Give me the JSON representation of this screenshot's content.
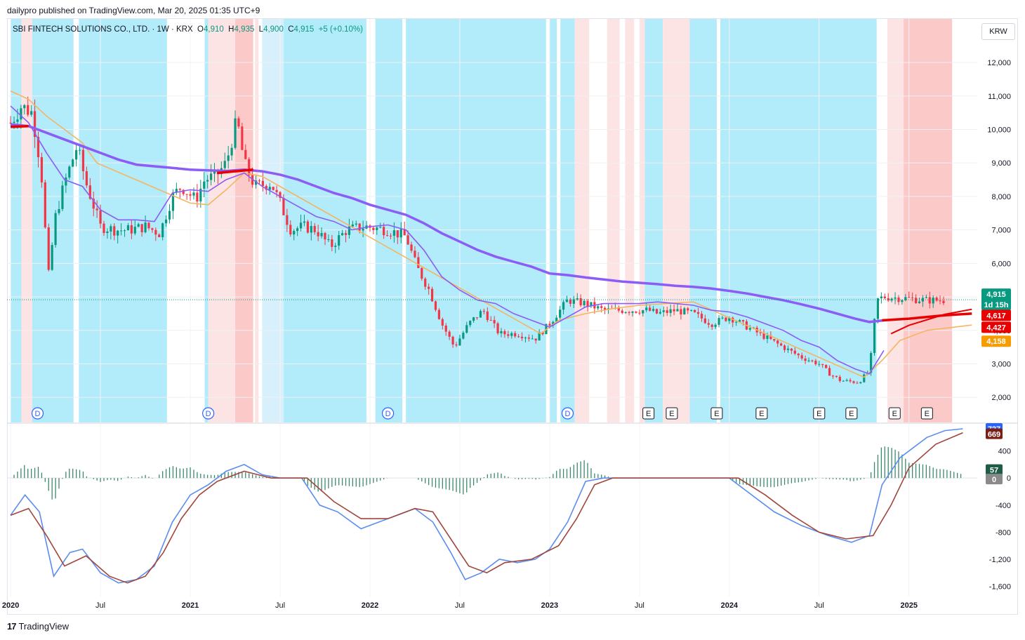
{
  "header": {
    "published": "dailypro published on TradingView.com, Mar 20, 2025 01:35 UTC+9"
  },
  "legend": {
    "symbol": "SBI FINTECH SOLUTIONS CO., LTD. · 1W · KRX",
    "o_label": "O",
    "o_value": "4,910",
    "h_label": "H",
    "h_value": "4,935",
    "l_label": "L",
    "l_value": "4,900",
    "c_label": "C",
    "c_value": "4,915",
    "change": "+5 (+0.10%)"
  },
  "currency": "KRW",
  "footer": {
    "brand": "TradingView"
  },
  "colors": {
    "up": "#089981",
    "down": "#f23645",
    "cyan_band": "#b2ebfa",
    "pale_cyan_band": "#d8f0fb",
    "pink_band": "#fde4e4",
    "red_band": "#fcc9c9",
    "ma_purple": "#8b5cf6",
    "ma_red": "#e80000",
    "ma_orange": "#f5b560",
    "macd_blue": "#5b8def",
    "signal_brown": "#a0463c",
    "hist": "#3a8a6a"
  },
  "chart_data": [
    {
      "type": "candlestick",
      "title": "SBI FINTECH SOLUTIONS CO., LTD. · 1W · KRX",
      "x_ticks": [
        "2020",
        "Jul",
        "2021",
        "Jul",
        "2022",
        "Jul",
        "2023",
        "Jul",
        "2024",
        "Jul",
        "2025"
      ],
      "y_ticks": [
        "2,000",
        "3,000",
        "4,000",
        "5,000",
        "6,000",
        "7,000",
        "8,000",
        "9,000",
        "10,000",
        "11,000",
        "12,000"
      ],
      "ylim": [
        1250,
        13300
      ],
      "xlim": [
        2020.0,
        2025.35
      ],
      "close_path": [
        [
          2020.0,
          10200
        ],
        [
          2020.06,
          10700
        ],
        [
          2020.12,
          10500
        ],
        [
          2020.17,
          8800
        ],
        [
          2020.21,
          5600
        ],
        [
          2020.25,
          7400
        ],
        [
          2020.3,
          8400
        ],
        [
          2020.37,
          9500
        ],
        [
          2020.42,
          8400
        ],
        [
          2020.5,
          7100
        ],
        [
          2020.58,
          7000
        ],
        [
          2020.66,
          7000
        ],
        [
          2020.75,
          7100
        ],
        [
          2020.83,
          6900
        ],
        [
          2020.9,
          8000
        ],
        [
          2020.95,
          8300
        ],
        [
          2021.03,
          7900
        ],
        [
          2021.08,
          8500
        ],
        [
          2021.14,
          8600
        ],
        [
          2021.2,
          9000
        ],
        [
          2021.26,
          10300
        ],
        [
          2021.3,
          9000
        ],
        [
          2021.36,
          8300
        ],
        [
          2021.45,
          8400
        ],
        [
          2021.5,
          7800
        ],
        [
          2021.56,
          7000
        ],
        [
          2021.63,
          7100
        ],
        [
          2021.7,
          7000
        ],
        [
          2021.78,
          6500
        ],
        [
          2021.87,
          7000
        ],
        [
          2021.97,
          7100
        ],
        [
          2022.1,
          7000
        ],
        [
          2022.2,
          6800
        ],
        [
          2022.26,
          5900
        ],
        [
          2022.33,
          5200
        ],
        [
          2022.4,
          4200
        ],
        [
          2022.47,
          3500
        ],
        [
          2022.55,
          4200
        ],
        [
          2022.63,
          4600
        ],
        [
          2022.72,
          3900
        ],
        [
          2022.82,
          3900
        ],
        [
          2022.92,
          3750
        ],
        [
          2023.0,
          4200
        ],
        [
          2023.1,
          4900
        ],
        [
          2023.2,
          4800
        ],
        [
          2023.3,
          4600
        ],
        [
          2023.45,
          4600
        ],
        [
          2023.55,
          4600
        ],
        [
          2023.6,
          4500
        ],
        [
          2023.7,
          4600
        ],
        [
          2023.8,
          4500
        ],
        [
          2023.9,
          4200
        ],
        [
          2024.0,
          4400
        ],
        [
          2024.1,
          4100
        ],
        [
          2024.2,
          3800
        ],
        [
          2024.3,
          3500
        ],
        [
          2024.4,
          3200
        ],
        [
          2024.5,
          3000
        ],
        [
          2024.56,
          2700
        ],
        [
          2024.62,
          2500
        ],
        [
          2024.72,
          2450
        ],
        [
          2024.78,
          2800
        ],
        [
          2024.82,
          4900
        ],
        [
          2024.86,
          5000
        ],
        [
          2025.0,
          4950
        ],
        [
          2025.1,
          4900
        ],
        [
          2025.2,
          4900
        ]
      ],
      "ma_fast_purple": [
        [
          2020.0,
          10700
        ],
        [
          2020.1,
          10200
        ],
        [
          2020.2,
          9300
        ],
        [
          2020.3,
          8500
        ],
        [
          2020.4,
          8300
        ],
        [
          2020.5,
          7600
        ],
        [
          2020.6,
          7300
        ],
        [
          2020.7,
          7300
        ],
        [
          2020.8,
          7250
        ],
        [
          2020.9,
          8100
        ],
        [
          2021.0,
          8200
        ],
        [
          2021.1,
          8150
        ],
        [
          2021.2,
          8500
        ],
        [
          2021.3,
          8700
        ],
        [
          2021.4,
          8300
        ],
        [
          2021.5,
          8000
        ],
        [
          2021.6,
          7700
        ],
        [
          2021.7,
          7400
        ],
        [
          2021.8,
          7250
        ],
        [
          2021.9,
          7000
        ],
        [
          2022.0,
          7100
        ],
        [
          2022.1,
          7150
        ],
        [
          2022.2,
          7000
        ],
        [
          2022.3,
          6400
        ],
        [
          2022.4,
          5600
        ],
        [
          2022.5,
          5200
        ],
        [
          2022.6,
          4900
        ],
        [
          2022.7,
          4800
        ],
        [
          2022.8,
          4500
        ],
        [
          2022.9,
          4300
        ],
        [
          2023.0,
          4100
        ],
        [
          2023.1,
          4400
        ],
        [
          2023.2,
          4700
        ],
        [
          2023.3,
          4800
        ],
        [
          2023.4,
          4800
        ],
        [
          2023.5,
          4800
        ],
        [
          2023.6,
          4850
        ],
        [
          2023.7,
          4800
        ],
        [
          2023.8,
          4750
        ],
        [
          2023.9,
          4600
        ],
        [
          2024.0,
          4550
        ],
        [
          2024.1,
          4400
        ],
        [
          2024.2,
          4200
        ],
        [
          2024.3,
          4000
        ],
        [
          2024.4,
          3700
        ],
        [
          2024.5,
          3500
        ],
        [
          2024.6,
          3100
        ],
        [
          2024.7,
          2850
        ],
        [
          2024.78,
          2700
        ],
        [
          2024.86,
          3400
        ]
      ],
      "ma_slow_purple": [
        [
          2020.0,
          10150
        ],
        [
          2020.1,
          10100
        ],
        [
          2020.2,
          9900
        ],
        [
          2020.3,
          9700
        ],
        [
          2020.4,
          9500
        ],
        [
          2020.5,
          9300
        ],
        [
          2020.6,
          9100
        ],
        [
          2020.7,
          8950
        ],
        [
          2020.8,
          8900
        ],
        [
          2020.9,
          8850
        ],
        [
          2021.0,
          8800
        ],
        [
          2021.1,
          8780
        ],
        [
          2021.2,
          8760
        ],
        [
          2021.3,
          8800
        ],
        [
          2021.4,
          8750
        ],
        [
          2021.5,
          8650
        ],
        [
          2021.6,
          8500
        ],
        [
          2021.7,
          8300
        ],
        [
          2021.8,
          8100
        ],
        [
          2021.9,
          7950
        ],
        [
          2022.0,
          7750
        ],
        [
          2022.1,
          7600
        ],
        [
          2022.2,
          7450
        ],
        [
          2022.3,
          7200
        ],
        [
          2022.4,
          6900
        ],
        [
          2022.5,
          6650
        ],
        [
          2022.6,
          6400
        ],
        [
          2022.7,
          6200
        ],
        [
          2022.8,
          6050
        ],
        [
          2022.9,
          5900
        ],
        [
          2023.0,
          5700
        ],
        [
          2023.1,
          5650
        ],
        [
          2023.2,
          5580
        ],
        [
          2023.3,
          5520
        ],
        [
          2023.4,
          5460
        ],
        [
          2023.5,
          5420
        ],
        [
          2023.6,
          5380
        ],
        [
          2023.7,
          5330
        ],
        [
          2023.8,
          5300
        ],
        [
          2023.9,
          5250
        ],
        [
          2024.0,
          5180
        ],
        [
          2024.1,
          5100
        ],
        [
          2024.2,
          5000
        ],
        [
          2024.3,
          4900
        ],
        [
          2024.4,
          4780
        ],
        [
          2024.5,
          4650
        ],
        [
          2024.6,
          4500
        ],
        [
          2024.7,
          4350
        ],
        [
          2024.78,
          4250
        ],
        [
          2024.86,
          4300
        ]
      ],
      "ma_red": [
        [
          2020.0,
          10080
        ],
        [
          2020.1,
          10100
        ],
        [
          2021.15,
          8700
        ],
        [
          2021.35,
          8800
        ],
        [
          2024.85,
          4300
        ],
        [
          2025.0,
          4350
        ],
        [
          2025.2,
          4450
        ],
        [
          2025.35,
          4500
        ]
      ],
      "ma_red_rising": [
        [
          2024.9,
          3900
        ],
        [
          2025.0,
          4150
        ],
        [
          2025.2,
          4480
        ],
        [
          2025.35,
          4630
        ]
      ],
      "ma_orange": [
        [
          2020.0,
          11150
        ],
        [
          2020.1,
          10900
        ],
        [
          2020.2,
          10400
        ],
        [
          2020.3,
          10000
        ],
        [
          2020.4,
          9600
        ],
        [
          2020.48,
          9000
        ],
        [
          2021.0,
          7800
        ],
        [
          2021.1,
          7750
        ],
        [
          2021.2,
          8200
        ],
        [
          2021.3,
          8700
        ],
        [
          2021.4,
          8600
        ],
        [
          2022.95,
          3900
        ],
        [
          2023.05,
          4300
        ],
        [
          2023.2,
          4500
        ],
        [
          2023.35,
          4650
        ],
        [
          2023.5,
          4750
        ],
        [
          2023.65,
          4800
        ],
        [
          2023.8,
          4850
        ],
        [
          2024.75,
          2600
        ],
        [
          2024.85,
          3100
        ],
        [
          2024.95,
          3700
        ],
        [
          2025.1,
          4000
        ],
        [
          2025.35,
          4158
        ]
      ],
      "last_price": 4915,
      "price_tags": [
        "4,915",
        "1d 15h",
        "4,617",
        "4,427",
        "4,158"
      ],
      "band_markers": [
        "D",
        "D",
        "D",
        "D",
        "E",
        "E",
        "E",
        "E",
        "E",
        "E",
        "E",
        "E"
      ]
    },
    {
      "type": "macd",
      "y_ticks": [
        "-1,600",
        "-1,200",
        "-800",
        "-400",
        "0",
        "400"
      ],
      "ylim": [
        -1750,
        800
      ],
      "macd_line": [
        [
          2020.0,
          -550
        ],
        [
          2020.08,
          -250
        ],
        [
          2020.16,
          -500
        ],
        [
          2020.24,
          -1450
        ],
        [
          2020.33,
          -1100
        ],
        [
          2020.4,
          -1050
        ],
        [
          2020.5,
          -1400
        ],
        [
          2020.6,
          -1550
        ],
        [
          2020.7,
          -1500
        ],
        [
          2020.8,
          -1300
        ],
        [
          2020.9,
          -650
        ],
        [
          2021.0,
          -250
        ],
        [
          2021.1,
          -100
        ],
        [
          2021.2,
          100
        ],
        [
          2021.3,
          200
        ],
        [
          2021.4,
          50
        ],
        [
          2021.5,
          0
        ],
        [
          2021.62,
          0
        ],
        [
          2021.72,
          -400
        ],
        [
          2021.82,
          -500
        ],
        [
          2021.95,
          -750
        ],
        [
          2022.05,
          -650
        ],
        [
          2022.15,
          -550
        ],
        [
          2022.25,
          -450
        ],
        [
          2022.35,
          -650
        ],
        [
          2022.45,
          -1100
        ],
        [
          2022.53,
          -1500
        ],
        [
          2022.62,
          -1400
        ],
        [
          2022.72,
          -1200
        ],
        [
          2022.82,
          -1250
        ],
        [
          2022.92,
          -1200
        ],
        [
          2023.0,
          -1050
        ],
        [
          2023.1,
          -650
        ],
        [
          2023.2,
          -50
        ],
        [
          2023.3,
          0
        ],
        [
          2023.5,
          0
        ],
        [
          2023.75,
          0
        ],
        [
          2024.0,
          0
        ],
        [
          2024.1,
          -200
        ],
        [
          2024.25,
          -500
        ],
        [
          2024.4,
          -700
        ],
        [
          2024.55,
          -850
        ],
        [
          2024.68,
          -950
        ],
        [
          2024.78,
          -850
        ],
        [
          2024.85,
          -100
        ],
        [
          2024.95,
          300
        ],
        [
          2025.1,
          600
        ],
        [
          2025.2,
          700
        ],
        [
          2025.3,
          727
        ]
      ],
      "signal_line": [
        [
          2020.0,
          -550
        ],
        [
          2020.1,
          -450
        ],
        [
          2020.2,
          -850
        ],
        [
          2020.3,
          -1300
        ],
        [
          2020.42,
          -1150
        ],
        [
          2020.55,
          -1450
        ],
        [
          2020.65,
          -1550
        ],
        [
          2020.75,
          -1450
        ],
        [
          2020.85,
          -1100
        ],
        [
          2020.95,
          -600
        ],
        [
          2021.05,
          -250
        ],
        [
          2021.15,
          -50
        ],
        [
          2021.3,
          100
        ],
        [
          2021.45,
          0
        ],
        [
          2021.65,
          0
        ],
        [
          2021.8,
          -350
        ],
        [
          2021.95,
          -600
        ],
        [
          2022.1,
          -600
        ],
        [
          2022.25,
          -450
        ],
        [
          2022.35,
          -500
        ],
        [
          2022.45,
          -900
        ],
        [
          2022.55,
          -1300
        ],
        [
          2022.65,
          -1400
        ],
        [
          2022.75,
          -1250
        ],
        [
          2022.9,
          -1200
        ],
        [
          2023.05,
          -1000
        ],
        [
          2023.15,
          -600
        ],
        [
          2023.25,
          -100
        ],
        [
          2023.35,
          0
        ],
        [
          2024.05,
          0
        ],
        [
          2024.2,
          -250
        ],
        [
          2024.35,
          -550
        ],
        [
          2024.5,
          -800
        ],
        [
          2024.65,
          -900
        ],
        [
          2024.8,
          -850
        ],
        [
          2024.9,
          -400
        ],
        [
          2025.0,
          150
        ],
        [
          2025.15,
          500
        ],
        [
          2025.3,
          669
        ]
      ],
      "histogram_hint": "alternating green bars matching MACD minus signal",
      "value_tags": [
        "727",
        "669",
        "57",
        "0"
      ]
    }
  ]
}
